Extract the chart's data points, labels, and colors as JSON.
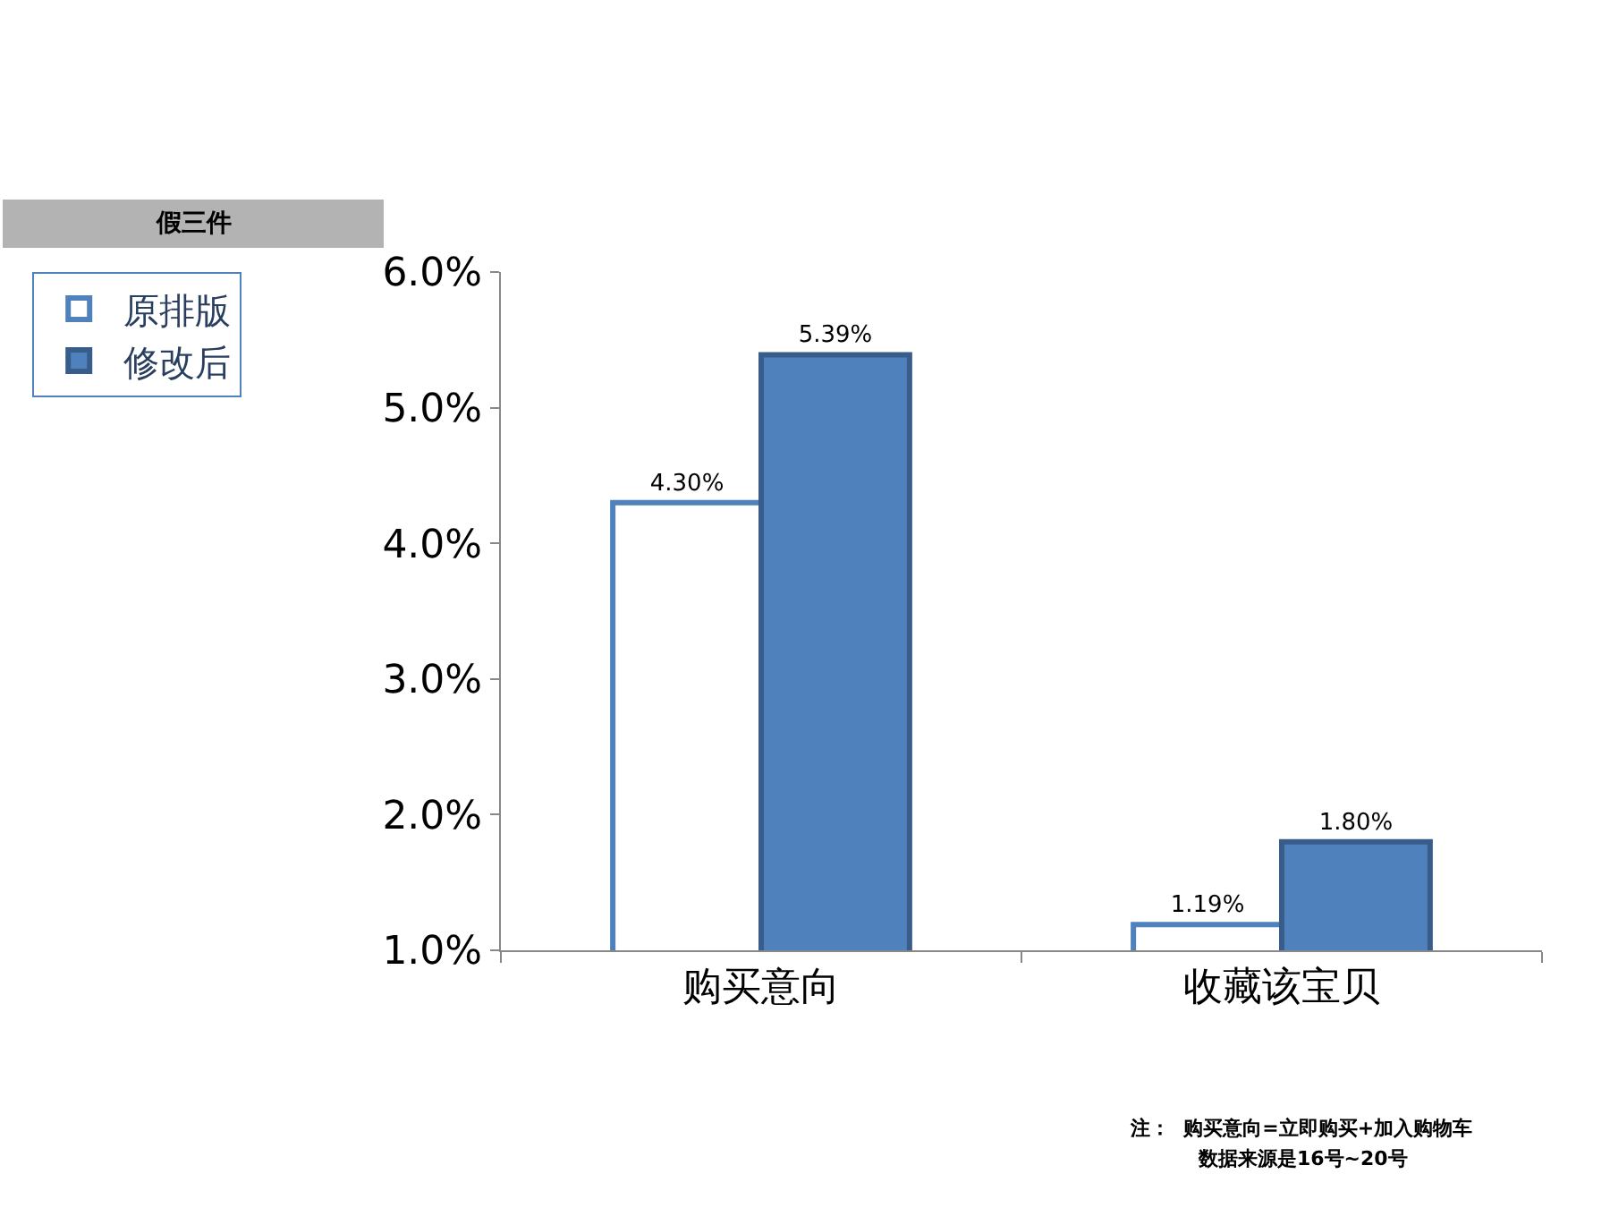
{
  "chart_data": {
    "type": "bar",
    "title": "假三件",
    "categories": [
      "购买意向",
      "收藏该宝贝"
    ],
    "series": [
      {
        "name": "原排版",
        "color": "#ffffff",
        "values": [
          4.3,
          1.19
        ],
        "value_labels": [
          "4.30%",
          "1.19%"
        ]
      },
      {
        "name": "修改后",
        "color": "#4f81bd",
        "values": [
          5.39,
          1.8
        ],
        "value_labels": [
          "5.39%",
          "1.80%"
        ]
      }
    ],
    "ylim": [
      1,
      6
    ],
    "yticks": [
      {
        "value": 1,
        "label": "1.0%"
      },
      {
        "value": 2,
        "label": "2.0%"
      },
      {
        "value": 3,
        "label": "3.0%"
      },
      {
        "value": 4,
        "label": "4.0%"
      },
      {
        "value": 5,
        "label": "5.0%"
      },
      {
        "value": 6,
        "label": "6.0%"
      }
    ],
    "legend": "left",
    "annotations": [
      "注：  购买意向=立即购买+加入购物车",
      "数据来源是16号~20号"
    ]
  }
}
